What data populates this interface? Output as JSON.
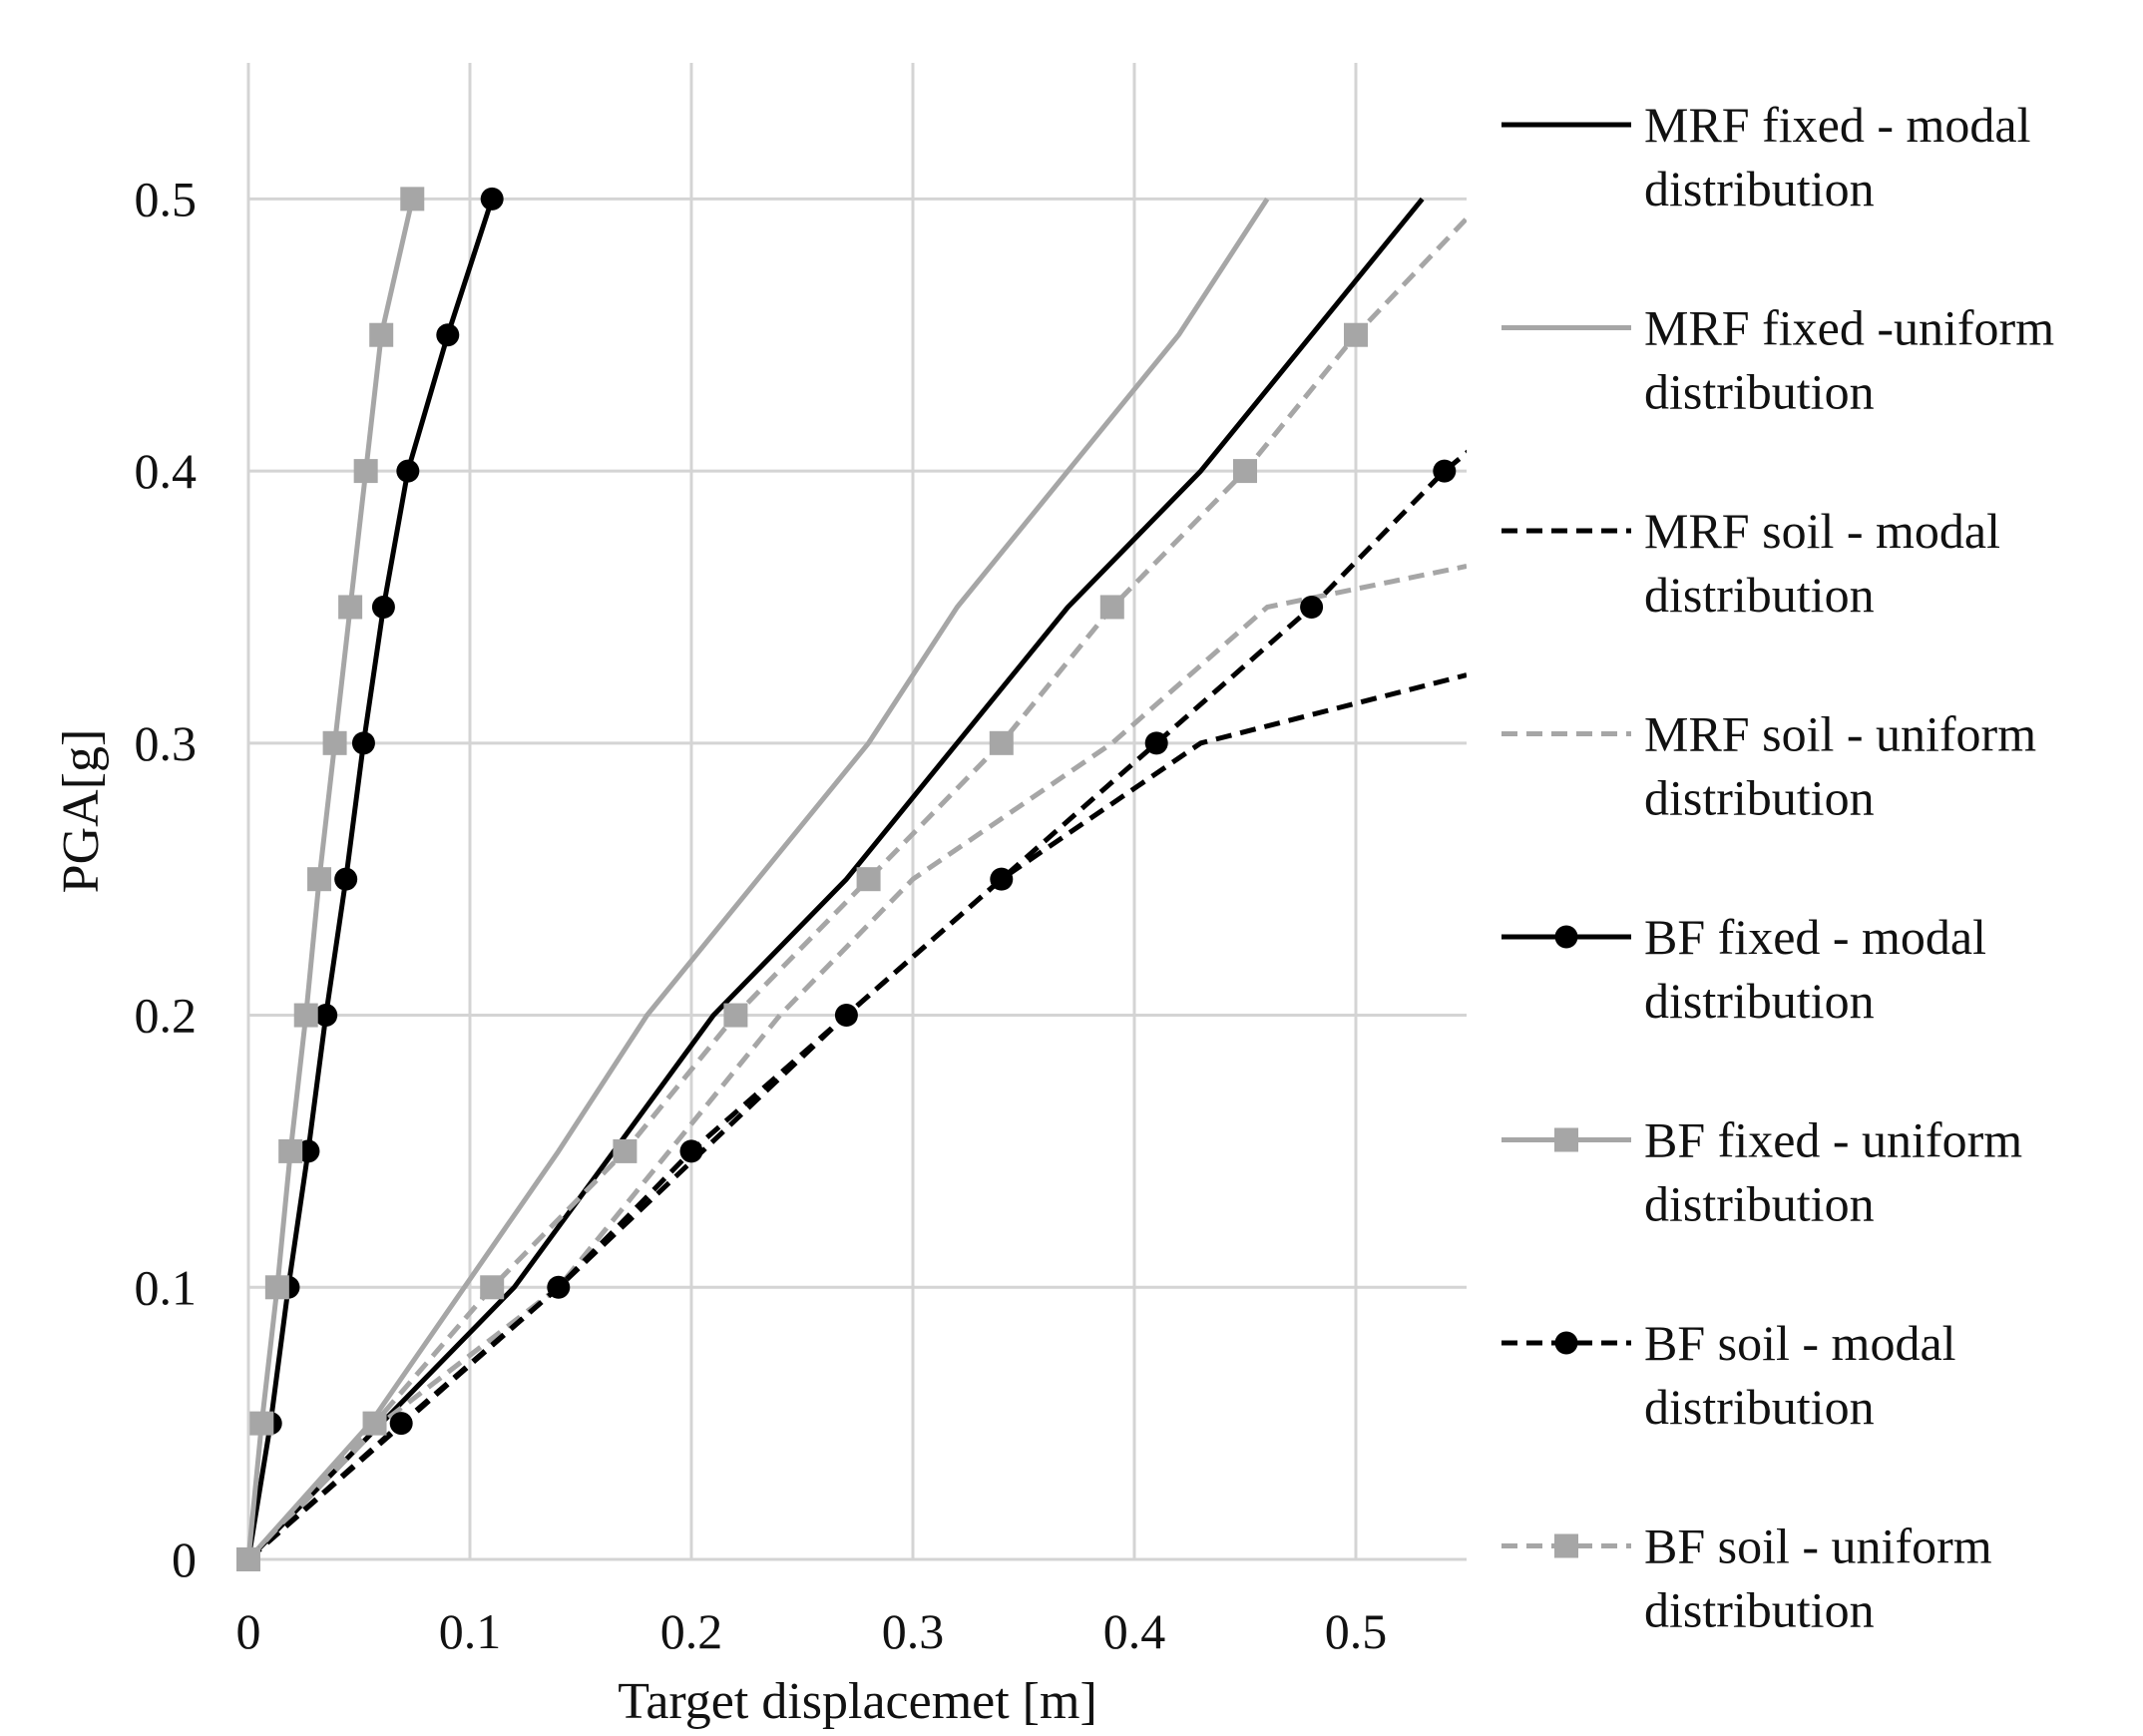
{
  "chart_data": {
    "type": "line",
    "title": "",
    "xlabel": "Target displacemet [m]",
    "ylabel": "PGA[g]",
    "xlim": [
      0,
      0.55
    ],
    "ylim": [
      0,
      0.55
    ],
    "xticks": [
      0,
      0.1,
      0.2,
      0.3,
      0.4,
      0.5
    ],
    "xtick_labels": [
      "0",
      "0.1",
      "0.2",
      "0.3",
      "0.4",
      "0.5"
    ],
    "yticks": [
      0,
      0.1,
      0.2,
      0.3,
      0.4,
      0.5
    ],
    "ytick_labels": [
      "0",
      "0.1",
      "0.2",
      "0.3",
      "0.4",
      "0.5"
    ],
    "grid": true,
    "legend_position": "right",
    "series": [
      {
        "name": "MRF fixed - modal distribution",
        "legend_lines": [
          "MRF fixed - modal",
          "distribution"
        ],
        "color": "#000000",
        "dash": "solid",
        "marker": "none",
        "x": [
          0,
          0.06,
          0.12,
          0.21,
          0.27,
          0.32,
          0.37,
          0.43,
          0.53
        ],
        "y": [
          0,
          0.05,
          0.1,
          0.2,
          0.25,
          0.3,
          0.35,
          0.4,
          0.5
        ]
      },
      {
        "name": "MRF fixed -uniform distribution",
        "legend_lines": [
          "MRF fixed -uniform",
          "distribution"
        ],
        "color": "#a6a6a6",
        "dash": "solid",
        "marker": "none",
        "x": [
          0,
          0.055,
          0.14,
          0.18,
          0.28,
          0.32,
          0.37,
          0.42,
          0.46
        ],
        "y": [
          0,
          0.05,
          0.15,
          0.2,
          0.3,
          0.35,
          0.4,
          0.45,
          0.5
        ]
      },
      {
        "name": "MRF soil - modal distribution",
        "legend_lines": [
          "MRF soil - modal",
          "distribution"
        ],
        "color": "#000000",
        "dash": "dashed",
        "marker": "none",
        "x": [
          0,
          0.07,
          0.14,
          0.27,
          0.34,
          0.43,
          0.55
        ],
        "y": [
          0,
          0.05,
          0.1,
          0.2,
          0.25,
          0.3,
          0.325
        ]
      },
      {
        "name": "MRF soil - uniform distribution",
        "legend_lines": [
          "MRF soil - uniform",
          "distribution"
        ],
        "color": "#a6a6a6",
        "dash": "dashed",
        "marker": "none",
        "x": [
          0,
          0.06,
          0.14,
          0.24,
          0.3,
          0.39,
          0.46,
          0.55
        ],
        "y": [
          0,
          0.05,
          0.1,
          0.2,
          0.25,
          0.3,
          0.35,
          0.365
        ]
      },
      {
        "name": "BF fixed - modal distribution",
        "legend_lines": [
          "BF fixed - modal",
          "distribution"
        ],
        "color": "#000000",
        "dash": "solid",
        "marker": "circle",
        "x": [
          0,
          0.01,
          0.018,
          0.027,
          0.035,
          0.044,
          0.052,
          0.061,
          0.072,
          0.09,
          0.11
        ],
        "y": [
          0,
          0.05,
          0.1,
          0.15,
          0.2,
          0.25,
          0.3,
          0.35,
          0.4,
          0.45,
          0.5
        ]
      },
      {
        "name": "BF fixed - uniform distribution",
        "legend_lines": [
          "BF fixed - uniform",
          "distribution"
        ],
        "color": "#a6a6a6",
        "dash": "solid",
        "marker": "square",
        "x": [
          0,
          0.006,
          0.013,
          0.019,
          0.026,
          0.032,
          0.039,
          0.046,
          0.053,
          0.06,
          0.074
        ],
        "y": [
          0,
          0.05,
          0.1,
          0.15,
          0.2,
          0.25,
          0.3,
          0.35,
          0.4,
          0.45,
          0.5
        ]
      },
      {
        "name": "BF soil - modal distribution",
        "legend_lines": [
          "BF soil - modal",
          "distribution"
        ],
        "color": "#000000",
        "dash": "dashed",
        "marker": "circle",
        "x": [
          0,
          0.069,
          0.14,
          0.2,
          0.27,
          0.34,
          0.41,
          0.48,
          0.54,
          0.555
        ],
        "y": [
          0,
          0.05,
          0.1,
          0.15,
          0.2,
          0.25,
          0.3,
          0.35,
          0.4,
          0.41
        ],
        "marker_count": 9
      },
      {
        "name": "BF soil - uniform distribution",
        "legend_lines": [
          "BF soil - uniform",
          "distribution"
        ],
        "color": "#a6a6a6",
        "dash": "dashed",
        "marker": "square",
        "x": [
          0,
          0.057,
          0.11,
          0.17,
          0.22,
          0.28,
          0.34,
          0.39,
          0.45,
          0.5,
          0.555
        ],
        "y": [
          0,
          0.05,
          0.1,
          0.15,
          0.2,
          0.25,
          0.3,
          0.35,
          0.4,
          0.45,
          0.497
        ],
        "marker_count": 10
      }
    ]
  }
}
